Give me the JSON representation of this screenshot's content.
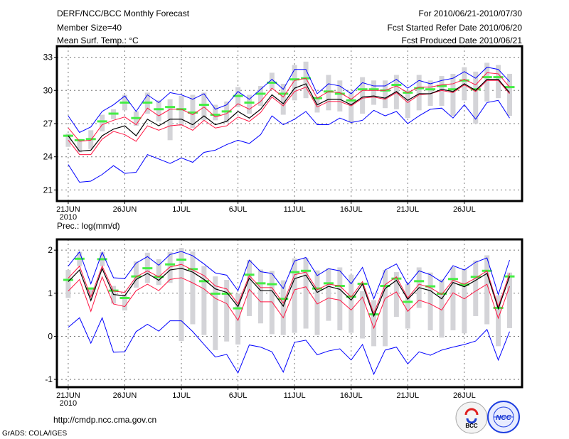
{
  "header": {
    "title": "DERF/NCC/BCC Monthly Forecast",
    "member_size": "Member Size=40",
    "variable": "Mean Surf. Temp.: °C",
    "period": "For 2010/06/21-2010/07/30",
    "start_date": "Fcst Started Refer Date 2010/06/20",
    "produced_date": "Fcst Produced Date 2010/06/21"
  },
  "footer": {
    "url": "http://cmdp.ncc.cma.gov.cn",
    "grads": "GrADS: COLA/IGES",
    "logo_bcc": "BCC",
    "logo_ncc": "NCC"
  },
  "colors": {
    "max_min": "#0000ff",
    "spread": "#ff1744",
    "mean": "#000000",
    "median": "#44ee44",
    "box": "#d4d4d8"
  },
  "chart_data": [
    {
      "type": "line",
      "title": "Mean Surf. Temp.: °C",
      "ylim": [
        20,
        34
      ],
      "xlim": [
        -1,
        40.1
      ],
      "yticks": [
        21,
        24,
        27,
        30,
        33
      ],
      "xtick_days": [
        0,
        5,
        10,
        15,
        20,
        25,
        30,
        35
      ],
      "xtick_labels": [
        "21JUN",
        "26JUN",
        "1JUL",
        "6JUL",
        "11JUL",
        "16JUL",
        "21JUL",
        "26JUL"
      ],
      "year_label": "2010",
      "grid": true,
      "series": {
        "mean": [
          25.9,
          24.5,
          24.6,
          25.9,
          26.5,
          26.8,
          25.9,
          27.4,
          26.8,
          27.4,
          27.4,
          26.9,
          27.7,
          26.9,
          27.2,
          28.1,
          27.5,
          28.3,
          29.6,
          28.8,
          30.2,
          30.6,
          28.7,
          29.2,
          29.2,
          28.7,
          29.4,
          29.5,
          29.3,
          29.9,
          29.1,
          29.7,
          29.7,
          30.1,
          29.9,
          30.6,
          30.0,
          31.0,
          31.0,
          29.8
        ],
        "upper_spread": [
          26.6,
          25.4,
          25.5,
          26.9,
          27.3,
          27.6,
          26.9,
          28.4,
          27.7,
          28.3,
          28.3,
          27.8,
          28.5,
          27.6,
          27.9,
          28.8,
          28.3,
          29.0,
          30.2,
          29.4,
          30.9,
          31.1,
          29.3,
          29.9,
          29.8,
          29.2,
          30.0,
          30.0,
          30.0,
          30.4,
          29.8,
          30.3,
          30.3,
          30.5,
          30.6,
          31.0,
          30.5,
          31.6,
          31.5,
          30.3
        ],
        "lower_spread": [
          25.5,
          24.2,
          24.2,
          25.6,
          26.3,
          26.0,
          25.4,
          26.8,
          26.4,
          26.8,
          26.9,
          26.4,
          27.3,
          26.6,
          26.8,
          27.6,
          27.2,
          28.0,
          29.4,
          28.6,
          29.9,
          30.3,
          28.5,
          29.0,
          29.0,
          28.6,
          29.3,
          29.4,
          29.2,
          29.8,
          28.9,
          29.6,
          29.7,
          30.0,
          29.8,
          30.5,
          29.9,
          30.9,
          30.9,
          29.7
        ],
        "max": [
          27.7,
          26.2,
          26.7,
          28.1,
          28.7,
          29.5,
          28.1,
          29.6,
          28.9,
          29.8,
          29.6,
          29.2,
          29.7,
          28.3,
          28.7,
          29.9,
          29.2,
          30.1,
          31.0,
          30.1,
          31.9,
          31.9,
          29.7,
          30.6,
          30.4,
          29.7,
          30.7,
          30.4,
          30.4,
          31.0,
          30.2,
          30.9,
          30.6,
          30.9,
          31.1,
          31.7,
          31.1,
          32.1,
          31.9,
          30.8
        ],
        "min": [
          23.3,
          21.7,
          21.8,
          22.4,
          23.2,
          22.5,
          22.6,
          24.2,
          23.8,
          23.4,
          23.9,
          23.5,
          24.4,
          24.6,
          25.1,
          25.5,
          25.2,
          26.0,
          27.7,
          26.9,
          27.4,
          28.1,
          26.9,
          26.9,
          27.5,
          27.1,
          27.3,
          28.2,
          27.7,
          28.1,
          27.0,
          27.7,
          28.3,
          28.4,
          27.5,
          28.7,
          27.4,
          28.9,
          29.1,
          27.5
        ],
        "median": [
          25.9,
          25.5,
          25.6,
          27.2,
          27.9,
          28.9,
          27.5,
          28.9,
          28.3,
          28.5,
          28.3,
          28.0,
          28.7,
          27.8,
          28.1,
          29.5,
          28.9,
          29.7,
          30.7,
          29.7,
          31.0,
          31.1,
          29.3,
          29.9,
          29.7,
          29.1,
          30.1,
          30.1,
          30.0,
          30.5,
          29.8,
          30.2,
          30.1,
          30.4,
          30.1,
          30.9,
          30.1,
          31.2,
          31.2,
          30.3
        ],
        "box_high": [
          26.1,
          25.6,
          26.4,
          27.8,
          28.3,
          29.6,
          28.1,
          29.8,
          29.1,
          29.2,
          29.5,
          29.6,
          29.8,
          28.7,
          29.0,
          30.3,
          29.6,
          30.4,
          31.6,
          30.6,
          32.3,
          32.6,
          29.3,
          31.4,
          30.9,
          29.9,
          31.2,
          30.9,
          30.9,
          31.4,
          30.0,
          31.4,
          30.9,
          31.3,
          31.5,
          32.1,
          31.7,
          32.5,
          32.3,
          31.5
        ],
        "box_low": [
          24.9,
          24.4,
          24.7,
          26.3,
          27.4,
          28.2,
          26.8,
          27.9,
          27.2,
          25.5,
          26.8,
          26.6,
          27.3,
          27.3,
          27.1,
          28.5,
          27.9,
          28.6,
          30.1,
          27.8,
          29.1,
          29.3,
          28.0,
          28.2,
          28.1,
          27.1,
          27.9,
          28.7,
          28.4,
          28.3,
          27.5,
          28.2,
          28.6,
          28.6,
          27.7,
          29.1,
          27.0,
          29.0,
          29.3,
          27.7
        ]
      }
    },
    {
      "type": "line",
      "title": "Prec.: log(mm/d)",
      "ylim": [
        -1.18,
        2.25
      ],
      "xlim": [
        -1,
        40.1
      ],
      "yticks": [
        -1,
        0,
        1,
        2
      ],
      "xtick_days": [
        0,
        5,
        10,
        15,
        20,
        25,
        30,
        35
      ],
      "xtick_labels": [
        "21JUN",
        "26JUN",
        "1JUL",
        "6JUL",
        "11JUL",
        "16JUL",
        "21JUL",
        "26JUL"
      ],
      "year_label": "2010",
      "grid": true,
      "series": {
        "mean": [
          1.27,
          1.54,
          0.83,
          1.57,
          0.97,
          0.94,
          1.32,
          1.46,
          1.3,
          1.54,
          1.58,
          1.49,
          1.32,
          1.1,
          1.02,
          0.69,
          1.35,
          1.06,
          1.06,
          0.7,
          1.34,
          1.42,
          1.02,
          1.16,
          1.09,
          0.84,
          1.21,
          0.47,
          1.11,
          1.3,
          0.86,
          1.13,
          1.06,
          0.87,
          1.25,
          1.15,
          1.3,
          1.46,
          0.64,
          1.39
        ],
        "upper_spread": [
          1.35,
          1.63,
          0.91,
          1.63,
          1.05,
          1.02,
          1.38,
          1.52,
          1.38,
          1.61,
          1.67,
          1.54,
          1.41,
          1.17,
          1.1,
          0.75,
          1.41,
          1.13,
          1.13,
          0.77,
          1.43,
          1.49,
          1.08,
          1.21,
          1.17,
          0.91,
          1.27,
          0.53,
          1.2,
          1.38,
          0.89,
          1.21,
          1.13,
          0.97,
          1.3,
          1.21,
          1.35,
          1.52,
          0.69,
          1.46
        ],
        "lower_spread": [
          1.05,
          1.32,
          0.58,
          1.38,
          0.75,
          0.69,
          1.06,
          1.21,
          1.06,
          1.32,
          1.36,
          1.24,
          1.1,
          0.88,
          0.76,
          0.37,
          1.09,
          0.8,
          0.8,
          0.43,
          1.08,
          1.15,
          0.75,
          0.89,
          0.84,
          0.61,
          0.91,
          0.19,
          0.88,
          1.03,
          0.58,
          0.84,
          0.75,
          0.61,
          1.01,
          0.87,
          1.05,
          1.21,
          0.42,
          1.16
        ],
        "max": [
          1.63,
          1.96,
          1.22,
          1.95,
          1.36,
          1.34,
          1.7,
          1.85,
          1.65,
          1.9,
          1.97,
          1.87,
          1.68,
          1.47,
          1.42,
          1.06,
          1.77,
          1.5,
          1.46,
          1.11,
          1.75,
          1.83,
          1.41,
          1.57,
          1.52,
          1.22,
          1.6,
          0.87,
          1.54,
          1.68,
          1.2,
          1.52,
          1.43,
          1.26,
          1.64,
          1.54,
          1.72,
          1.82,
          0.97,
          1.77
        ],
        "min": [
          0.21,
          0.43,
          -0.16,
          0.43,
          -0.37,
          -0.36,
          0.11,
          0.28,
          0.12,
          0.36,
          0.36,
          0.11,
          -0.19,
          -0.48,
          -0.42,
          -0.85,
          -0.2,
          -0.25,
          -0.36,
          -0.83,
          -0.14,
          -0.09,
          -0.43,
          -0.34,
          -0.29,
          -0.55,
          -0.19,
          -0.88,
          -0.32,
          -0.25,
          -0.64,
          -0.36,
          -0.44,
          -0.32,
          -0.25,
          -0.19,
          -0.11,
          0.16,
          -0.55,
          0.11
        ],
        "median": [
          1.31,
          1.8,
          1.11,
          1.79,
          1.06,
          0.89,
          1.39,
          1.58,
          1.38,
          1.67,
          1.78,
          1.56,
          1.28,
          0.99,
          0.99,
          0.65,
          1.43,
          1.23,
          1.21,
          0.87,
          1.49,
          1.52,
          1.11,
          1.23,
          1.17,
          0.92,
          1.22,
          0.51,
          1.17,
          1.34,
          0.8,
          1.28,
          1.16,
          0.99,
          1.33,
          1.2,
          1.38,
          1.52,
          0.66,
          1.39
        ],
        "box_high": [
          1.54,
          1.96,
          1.13,
          1.96,
          1.17,
          0.97,
          1.74,
          1.94,
          1.79,
          1.96,
          2.05,
          1.97,
          1.63,
          1.39,
          1.31,
          0.99,
          1.77,
          1.55,
          1.52,
          1.3,
          1.81,
          1.82,
          1.53,
          1.58,
          1.6,
          1.43,
          1.05,
          0.84,
          1.54,
          1.49,
          1.21,
          1.6,
          1.48,
          1.32,
          1.61,
          1.57,
          1.76,
          1.88,
          0.95,
          1.48
        ],
        "box_low": [
          0.89,
          1.63,
          0.93,
          1.63,
          0.76,
          0.6,
          1.13,
          1.24,
          1.19,
          1.24,
          -0.11,
          0.28,
          0.03,
          -0.32,
          -0.12,
          -0.19,
          0.47,
          0.3,
          0.05,
          0.03,
          0.08,
          0.18,
          0.03,
          0.36,
          0.14,
          0.08,
          -0.05,
          -0.23,
          -0.23,
          0.45,
          0.18,
          0.66,
          0.14,
          -0.03,
          0.14,
          0.07,
          0.47,
          0.28,
          -0.23,
          0.19
        ]
      }
    }
  ]
}
